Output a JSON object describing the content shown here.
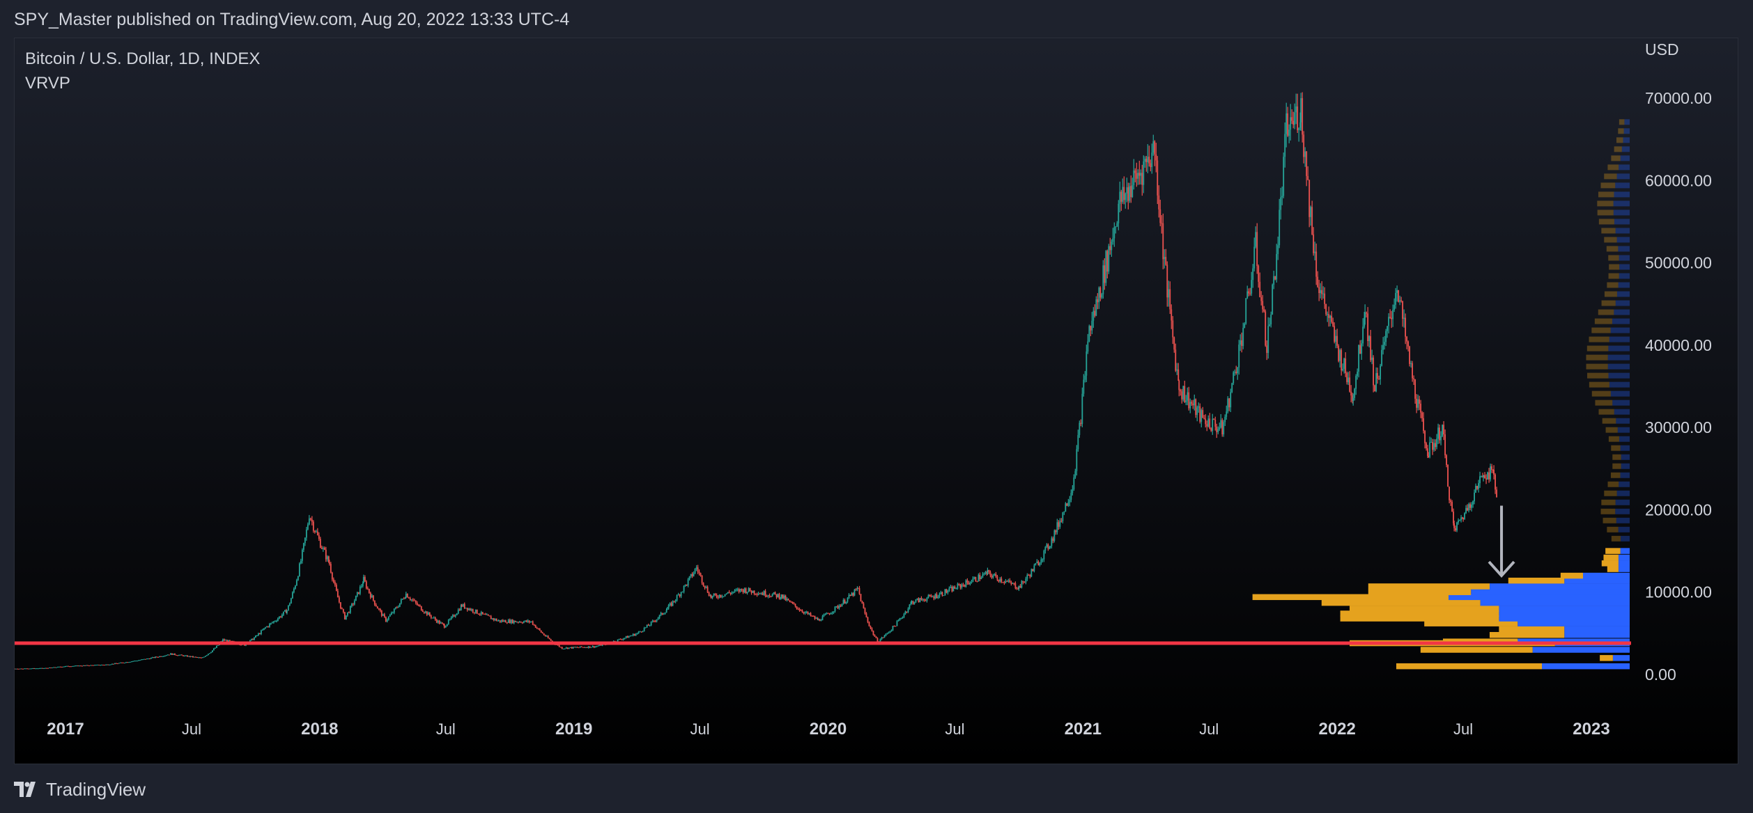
{
  "header": {
    "publish_line": "SPY_Master published on TradingView.com, Aug 20, 2022 13:33 UTC-4"
  },
  "chart_header": {
    "symbol": "Bitcoin / U.S. Dollar, 1D, INDEX",
    "indicator": "VRVP"
  },
  "footer": {
    "brand": "TradingView"
  },
  "colors": {
    "background_top": "#1c202b",
    "background_bottom": "#000000",
    "candle_up": "#26a69a",
    "candle_down": "#ef5350",
    "support_line": "#f23645",
    "vp_up": "#2962ff",
    "vp_down": "#e5a21e",
    "arrow": "#b2b5be",
    "axis_text": "#d1d4dc"
  },
  "chart_data": {
    "type": "line",
    "title": "Bitcoin / U.S. Dollar, 1D, INDEX",
    "y_axis_label": "USD",
    "y_ticks": [
      "0.00",
      "10000.00",
      "20000.00",
      "30000.00",
      "40000.00",
      "50000.00",
      "60000.00",
      "70000.00"
    ],
    "ylim": [
      0,
      70000
    ],
    "x_ticks": [
      "2017",
      "Jul",
      "2018",
      "Jul",
      "2019",
      "Jul",
      "2020",
      "Jul",
      "2021",
      "Jul",
      "2022",
      "Jul",
      "2023"
    ],
    "x_tick_bold": [
      true,
      false,
      true,
      false,
      true,
      false,
      true,
      false,
      true,
      false,
      true,
      false,
      true
    ],
    "series": [
      {
        "values_approx": [
          [
            "2016-08-01",
            600
          ],
          [
            "2016-12-01",
            760
          ],
          [
            "2017-01-01",
            1000
          ],
          [
            "2017-03-01",
            1200
          ],
          [
            "2017-06-01",
            2500
          ],
          [
            "2017-07-15",
            2000
          ],
          [
            "2017-08-15",
            4200
          ],
          [
            "2017-09-15",
            3600
          ],
          [
            "2017-10-15",
            5700
          ],
          [
            "2017-11-15",
            7800
          ],
          [
            "2017-12-17",
            19500
          ],
          [
            "2018-01-15",
            13500
          ],
          [
            "2018-02-06",
            6900
          ],
          [
            "2018-03-05",
            11500
          ],
          [
            "2018-04-06",
            6600
          ],
          [
            "2018-05-05",
            9800
          ],
          [
            "2018-06-29",
            5900
          ],
          [
            "2018-07-24",
            8400
          ],
          [
            "2018-09-15",
            6500
          ],
          [
            "2018-11-01",
            6400
          ],
          [
            "2018-12-15",
            3200
          ],
          [
            "2019-02-01",
            3400
          ],
          [
            "2019-04-02",
            5000
          ],
          [
            "2019-05-15",
            8000
          ],
          [
            "2019-06-26",
            13000
          ],
          [
            "2019-07-17",
            9400
          ],
          [
            "2019-09-01",
            10300
          ],
          [
            "2019-10-26",
            9500
          ],
          [
            "2019-12-18",
            6600
          ],
          [
            "2020-02-13",
            10400
          ],
          [
            "2020-03-12",
            4000
          ],
          [
            "2020-04-30",
            8800
          ],
          [
            "2020-06-01",
            9500
          ],
          [
            "2020-08-17",
            12300
          ],
          [
            "2020-10-01",
            10600
          ],
          [
            "2020-11-15",
            16000
          ],
          [
            "2020-12-17",
            23000
          ],
          [
            "2021-01-08",
            41000
          ],
          [
            "2021-02-21",
            57000
          ],
          [
            "2021-04-14",
            64000
          ],
          [
            "2021-05-19",
            35000
          ],
          [
            "2021-06-22",
            31000
          ],
          [
            "2021-07-20",
            29800
          ],
          [
            "2021-09-06",
            52000
          ],
          [
            "2021-09-22",
            40000
          ],
          [
            "2021-10-20",
            66000
          ],
          [
            "2021-11-10",
            68800
          ],
          [
            "2021-12-04",
            48000
          ],
          [
            "2022-01-24",
            34000
          ],
          [
            "2022-02-10",
            45000
          ],
          [
            "2022-02-24",
            35000
          ],
          [
            "2022-03-28",
            47500
          ],
          [
            "2022-05-12",
            27000
          ],
          [
            "2022-06-01",
            30000
          ],
          [
            "2022-06-18",
            17600
          ],
          [
            "2022-07-01",
            19300
          ],
          [
            "2022-07-30",
            24500
          ],
          [
            "2022-08-14",
            24400
          ],
          [
            "2022-08-19",
            21000
          ]
        ]
      }
    ],
    "support_line": {
      "value": 3800
    },
    "volume_profile": {
      "description": "VRVP horizontal histogram, each row: price bin center, up volume, down volume (relative units)",
      "rows": [
        {
          "price": 1000,
          "up": 47,
          "down": 78
        },
        {
          "price": 2000,
          "up": 9,
          "down": 7
        },
        {
          "price": 3000,
          "up": 52,
          "down": 60
        },
        {
          "price": 3800,
          "up": 40,
          "down": 110
        },
        {
          "price": 4000,
          "up": 60,
          "down": 40
        },
        {
          "price": 4800,
          "up": 35,
          "down": 40
        },
        {
          "price": 5500,
          "up": 35,
          "down": 35
        },
        {
          "price": 6200,
          "up": 60,
          "down": 50
        },
        {
          "price": 6800,
          "up": 70,
          "down": 85
        },
        {
          "price": 7400,
          "up": 70,
          "down": 85
        },
        {
          "price": 8000,
          "up": 70,
          "down": 80
        },
        {
          "price": 8700,
          "up": 80,
          "down": 85
        },
        {
          "price": 9400,
          "up": 97,
          "down": 105
        },
        {
          "price": 10000,
          "up": 85,
          "down": 55
        },
        {
          "price": 10700,
          "up": 75,
          "down": 65
        },
        {
          "price": 11400,
          "up": 35,
          "down": 30
        },
        {
          "price": 12000,
          "up": 25,
          "down": 12
        },
        {
          "price": 12800,
          "up": 6,
          "down": 6
        },
        {
          "price": 13500,
          "up": 6,
          "down": 9
        },
        {
          "price": 14200,
          "up": 6,
          "down": 8
        },
        {
          "price": 15000,
          "up": 5,
          "down": 8
        }
      ],
      "ghost_rows_above_15000": true
    },
    "annotations": [
      {
        "type": "arrow",
        "from_date": "2022-08-25",
        "from_value": 20500,
        "to_value": 12000
      }
    ]
  }
}
